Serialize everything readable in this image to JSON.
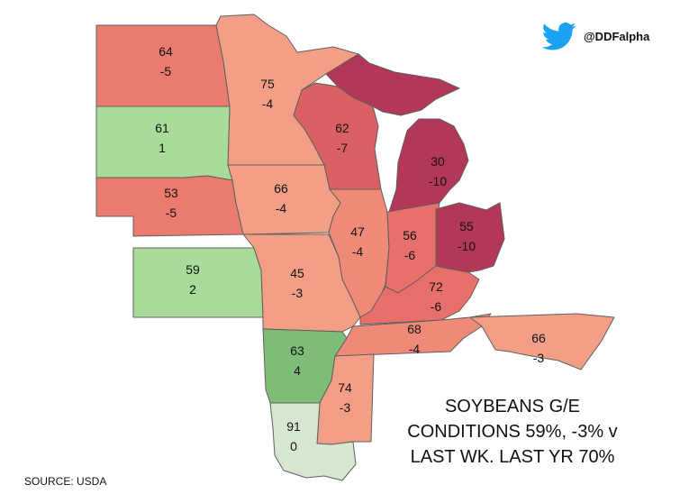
{
  "brand": {
    "handle": "@DDFalpha",
    "icon": "twitter-bird-icon",
    "icon_color": "#1DA1F2"
  },
  "summary": {
    "line1": "SOYBEANS G/E",
    "line2": "CONDITIONS 59%, -3% v",
    "line3": "LAST WK. LAST YR 70%"
  },
  "source": "SOURCE: USDA",
  "colors": {
    "deep_red": "#B33756",
    "red": "#D96063",
    "salmon_red": "#EB7B6F",
    "salmon": "#F08A78",
    "light_salmon": "#F39E87",
    "light_green": "#A9DC9A",
    "green": "#7FBC78",
    "pale_green": "#D6E6CF"
  },
  "states": [
    {
      "id": "ND",
      "condition": "64",
      "change": "-5",
      "color": "#EB7B6F"
    },
    {
      "id": "MN",
      "condition": "75",
      "change": "-4",
      "color": "#F39E87"
    },
    {
      "id": "SD",
      "condition": "61",
      "change": "1",
      "color": "#A9DC9A"
    },
    {
      "id": "WI",
      "condition": "62",
      "change": "-7",
      "color": "#D96063"
    },
    {
      "id": "MI",
      "condition": "30",
      "change": "-10",
      "color": "#B33756"
    },
    {
      "id": "NE",
      "condition": "53",
      "change": "-5",
      "color": "#EB7B6F"
    },
    {
      "id": "IA",
      "condition": "66",
      "change": "-4",
      "color": "#F39E87"
    },
    {
      "id": "IL",
      "condition": "47",
      "change": "-4",
      "color": "#F08A78"
    },
    {
      "id": "IN",
      "condition": "56",
      "change": "-6",
      "color": "#E8706B"
    },
    {
      "id": "OH",
      "condition": "55",
      "change": "-10",
      "color": "#B33756"
    },
    {
      "id": "KS",
      "condition": "59",
      "change": "2",
      "color": "#A9DC9A"
    },
    {
      "id": "MO",
      "condition": "45",
      "change": "-3",
      "color": "#F39E87"
    },
    {
      "id": "KY",
      "condition": "72",
      "change": "-6",
      "color": "#E8706B"
    },
    {
      "id": "TN",
      "condition": "68",
      "change": "-4",
      "color": "#F08A78"
    },
    {
      "id": "NC",
      "condition": "66",
      "change": "-3",
      "color": "#F39E87"
    },
    {
      "id": "AR",
      "condition": "63",
      "change": "4",
      "color": "#7FBC78"
    },
    {
      "id": "MS",
      "condition": "74",
      "change": "-3",
      "color": "#F39E87"
    },
    {
      "id": "LA",
      "condition": "91",
      "change": "0",
      "color": "#D6E6CF"
    }
  ]
}
